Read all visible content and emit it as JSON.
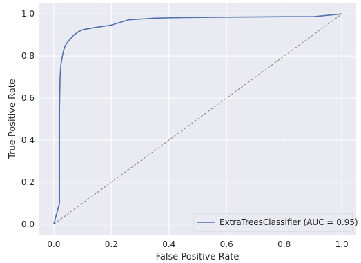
{
  "chart_data": {
    "type": "line",
    "title": "",
    "xlabel": "False Positive Rate",
    "ylabel": "True Positive Rate",
    "xlim": [
      -0.05,
      1.05
    ],
    "ylim": [
      -0.05,
      1.05
    ],
    "xticks": [
      0.0,
      0.2,
      0.4,
      0.6,
      0.8,
      1.0
    ],
    "yticks": [
      0.0,
      0.2,
      0.4,
      0.6,
      0.8,
      1.0
    ],
    "xtick_labels": [
      "0.0",
      "0.2",
      "0.4",
      "0.6",
      "0.8",
      "1.0"
    ],
    "ytick_labels": [
      "0.0",
      "0.2",
      "0.4",
      "0.6",
      "0.8",
      "1.0"
    ],
    "grid": true,
    "legend_position": "lower-right",
    "background_color": "#eaeaf2",
    "series": [
      {
        "name": "ExtraTreesClassifier (AUC = 0.95)",
        "color": "#4c72b0",
        "style": "solid",
        "x": [
          0.0,
          0.02,
          0.02,
          0.022,
          0.025,
          0.03,
          0.035,
          0.04,
          0.05,
          0.06,
          0.07,
          0.085,
          0.1,
          0.12,
          0.15,
          0.2,
          0.26,
          0.35,
          0.45,
          0.6,
          0.8,
          0.9,
          1.0
        ],
        "y": [
          0.0,
          0.1,
          0.55,
          0.7,
          0.76,
          0.8,
          0.83,
          0.85,
          0.87,
          0.885,
          0.9,
          0.915,
          0.925,
          0.93,
          0.937,
          0.947,
          0.972,
          0.98,
          0.983,
          0.985,
          0.987,
          0.987,
          1.0
        ]
      },
      {
        "name": "",
        "color": "#808080",
        "style": "dashed",
        "x": [
          0.0,
          1.0
        ],
        "y": [
          0.0,
          1.0
        ]
      }
    ],
    "legend_label": "ExtraTreesClassifier (AUC = 0.95)"
  }
}
